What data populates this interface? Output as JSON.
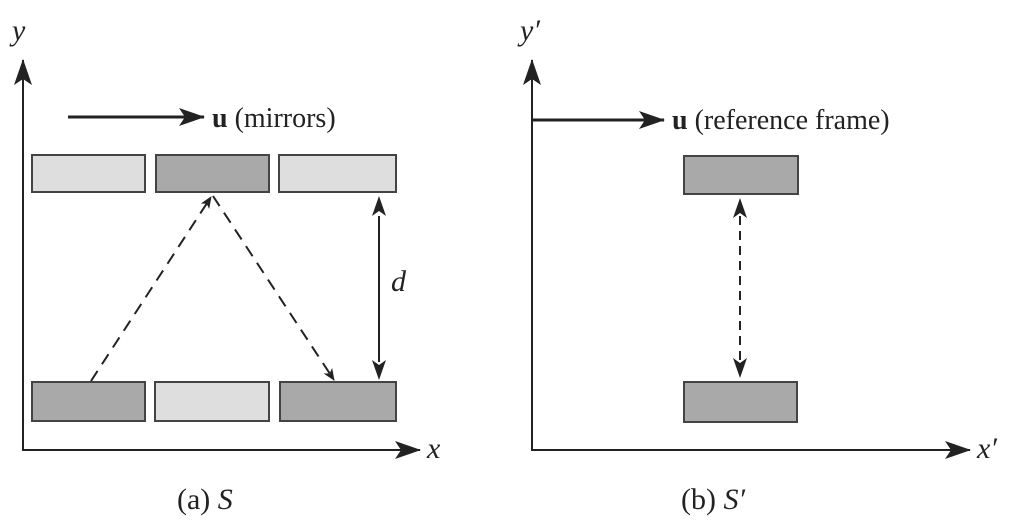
{
  "panel_a": {
    "y_axis_label": "y",
    "x_axis_label": "x",
    "velocity_symbol": "u",
    "velocity_text": " (mirrors)",
    "distance_label": "d",
    "caption_prefix": "(a) ",
    "caption_frame": "S"
  },
  "panel_b": {
    "y_axis_label": "y′",
    "x_axis_label": "x′",
    "velocity_symbol": "u",
    "velocity_text": " (reference frame)",
    "caption_prefix": "(b) ",
    "caption_frame": "S′"
  },
  "colors": {
    "axis": "#222222",
    "mirror_light": "#dedede",
    "mirror_dark": "#a9a9a9",
    "mirror_border": "#444444"
  }
}
